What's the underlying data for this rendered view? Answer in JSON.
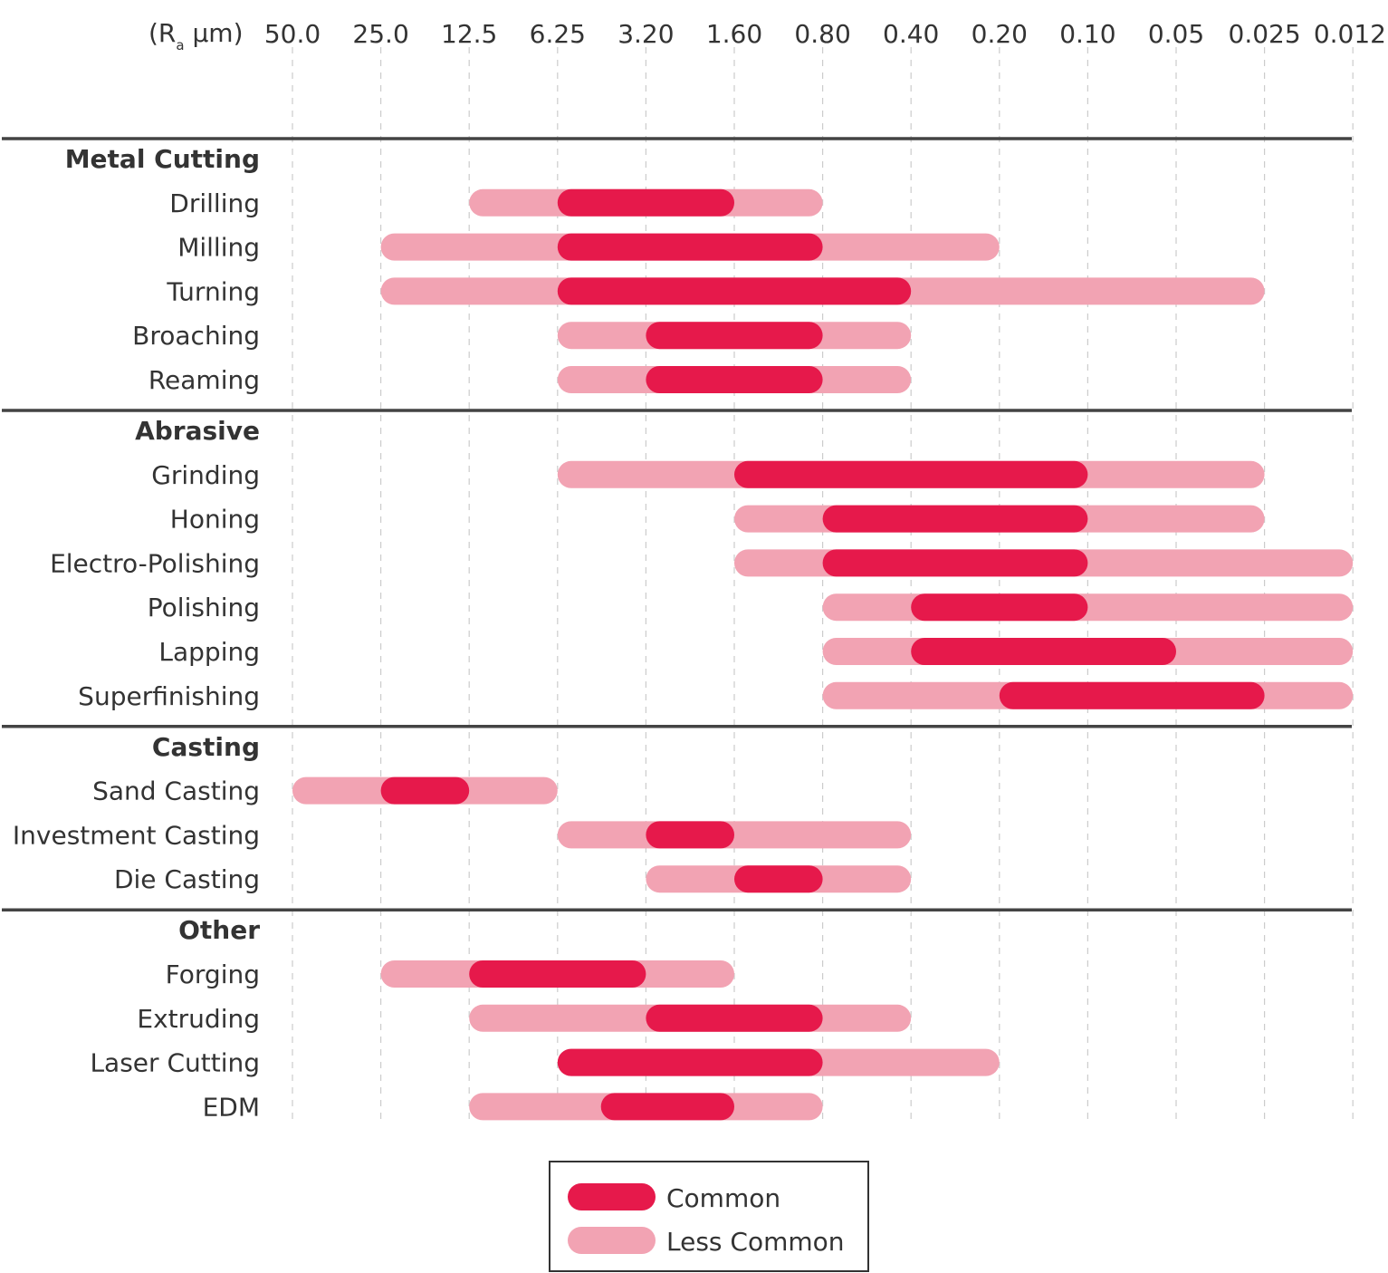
{
  "chart_data": {
    "type": "range-bar",
    "axis": {
      "unit_prefix": "(R",
      "unit_sub": "a",
      "unit_suffix": " μm)",
      "ticks": [
        "50.0",
        "25.0",
        "12.5",
        "6.25",
        "3.20",
        "1.60",
        "0.80",
        "0.40",
        "0.20",
        "0.10",
        "0.05",
        "0.025",
        "0.012"
      ],
      "grid": "dashed-vertical"
    },
    "colors": {
      "common": "#e6194b",
      "less_common": "#f2a3b3",
      "text": "#333333",
      "separator": "#444444",
      "grid": "#cccccc"
    },
    "legend": {
      "position": "bottom-center",
      "entries": [
        {
          "key": "common",
          "label": "Common"
        },
        {
          "key": "less_common",
          "label": "Less Common"
        }
      ]
    },
    "groups": [
      {
        "name": "Metal Cutting",
        "rows": [
          {
            "label": "Drilling",
            "less_common": [
              "12.5",
              "0.80"
            ],
            "common": [
              "6.25",
              "1.60"
            ]
          },
          {
            "label": "Milling",
            "less_common": [
              "25.0",
              "0.20"
            ],
            "common": [
              "6.25",
              "0.80"
            ]
          },
          {
            "label": "Turning",
            "less_common": [
              "25.0",
              "0.025"
            ],
            "common": [
              "6.25",
              "0.40"
            ]
          },
          {
            "label": "Broaching",
            "less_common": [
              "6.25",
              "0.40"
            ],
            "common": [
              "3.20",
              "0.80"
            ]
          },
          {
            "label": "Reaming",
            "less_common": [
              "6.25",
              "0.40"
            ],
            "common": [
              "3.20",
              "0.80"
            ]
          }
        ]
      },
      {
        "name": "Abrasive",
        "rows": [
          {
            "label": "Grinding",
            "less_common": [
              "6.25",
              "0.025"
            ],
            "common": [
              "1.60",
              "0.10"
            ]
          },
          {
            "label": "Honing",
            "less_common": [
              "1.60",
              "0.025"
            ],
            "common": [
              "0.80",
              "0.10"
            ]
          },
          {
            "label": "Electro-Polishing",
            "less_common": [
              "1.60",
              "0.012"
            ],
            "common": [
              "0.80",
              "0.10"
            ]
          },
          {
            "label": "Polishing",
            "less_common": [
              "0.80",
              "0.012"
            ],
            "common": [
              "0.40",
              "0.10"
            ]
          },
          {
            "label": "Lapping",
            "less_common": [
              "0.80",
              "0.012"
            ],
            "common": [
              "0.40",
              "0.05"
            ]
          },
          {
            "label": "Superfinishing",
            "less_common": [
              "0.80",
              "0.012"
            ],
            "common": [
              "0.20",
              "0.025"
            ]
          }
        ]
      },
      {
        "name": "Casting",
        "rows": [
          {
            "label": "Sand Casting",
            "less_common": [
              "50.0",
              "6.25"
            ],
            "common": [
              "25.0",
              "12.5"
            ]
          },
          {
            "label": "Investment Casting",
            "less_common": [
              "6.25",
              "0.40"
            ],
            "common": [
              "3.20",
              "1.60"
            ]
          },
          {
            "label": "Die Casting",
            "less_common": [
              "3.20",
              "0.40"
            ],
            "common": [
              "1.60",
              "0.80"
            ]
          }
        ]
      },
      {
        "name": "Other",
        "rows": [
          {
            "label": "Forging",
            "less_common": [
              "25.0",
              "1.60"
            ],
            "common": [
              "12.5",
              "3.20"
            ]
          },
          {
            "label": "Extruding",
            "less_common": [
              "12.5",
              "0.40"
            ],
            "common": [
              "3.20",
              "0.80"
            ]
          },
          {
            "label": "Laser Cutting",
            "less_common": [
              "6.25",
              "0.20"
            ],
            "common": [
              "6.25",
              "0.80"
            ]
          },
          {
            "label": "EDM",
            "less_common": [
              "12.5",
              "0.80"
            ],
            "common": [
              "4.5",
              "1.60"
            ]
          }
        ]
      }
    ]
  }
}
